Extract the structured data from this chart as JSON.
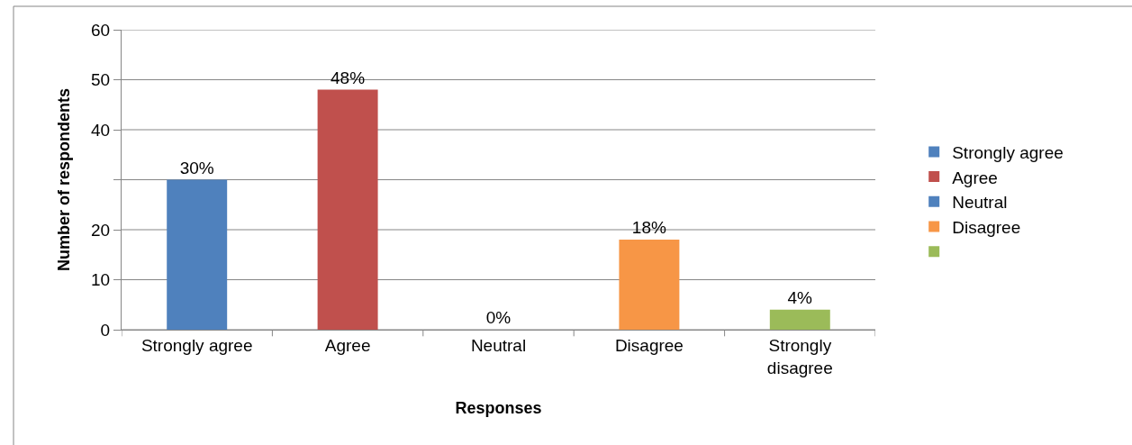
{
  "chart_data": {
    "type": "bar",
    "xlabel": "Responses",
    "ylabel": "Number of respondents",
    "categories": [
      "Strongly agree",
      "Agree",
      "Neutral",
      "Disagree",
      "Strongly disagree"
    ],
    "series": [
      {
        "name": "Strongly agree",
        "color": "#4f81bd",
        "values": [
          30,
          null,
          null,
          null,
          null
        ],
        "value_labels": [
          "30%",
          null,
          null,
          null,
          null
        ]
      },
      {
        "name": "Agree",
        "color": "#c0504d",
        "values": [
          null,
          48,
          null,
          null,
          null
        ],
        "value_labels": [
          null,
          "48%",
          null,
          null,
          null
        ]
      },
      {
        "name": "Neutral",
        "color": "#4f81bd",
        "values": [
          null,
          null,
          0,
          null,
          null
        ],
        "value_labels": [
          null,
          null,
          "0%",
          null,
          null
        ]
      },
      {
        "name": "Disagree",
        "color": "#f79646",
        "values": [
          null,
          null,
          null,
          18,
          null
        ],
        "value_labels": [
          null,
          null,
          null,
          "18%",
          null
        ]
      },
      {
        "color": "#9bbb59",
        "values": [
          null,
          null,
          null,
          null,
          4
        ],
        "value_labels": [
          null,
          null,
          null,
          null,
          "4%"
        ]
      }
    ],
    "ylim": [
      0,
      60
    ],
    "yticks": [
      0,
      10,
      20,
      {
        "value": 30,
        "label": null
      },
      40,
      50,
      60
    ],
    "grid": "y",
    "legend": "right"
  }
}
